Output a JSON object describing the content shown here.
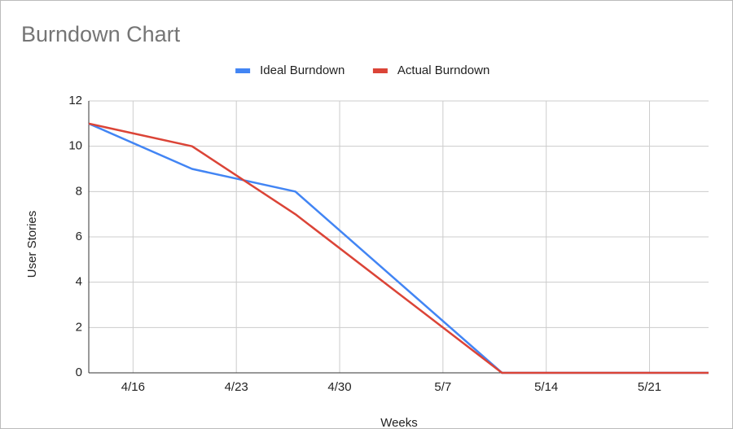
{
  "chart_data": {
    "type": "line",
    "title": "Burndown Chart",
    "x_label": "Weeks",
    "y_label": "User Stories",
    "x": [
      "4/13",
      "4/20",
      "4/27",
      "5/4",
      "5/11",
      "5/18",
      "5/25"
    ],
    "series": [
      {
        "name": "Ideal Burndown",
        "color": "#4285f4",
        "values": [
          11,
          9,
          8,
          4,
          0,
          0,
          0
        ]
      },
      {
        "name": "Actual Burndown",
        "color": "#db4437",
        "values": [
          11,
          10,
          7,
          3.5,
          0,
          0,
          0
        ]
      }
    ],
    "xlim": [
      "4/13",
      "5/25"
    ],
    "xticks": [
      "4/16",
      "4/23",
      "4/30",
      "5/7",
      "5/14",
      "5/21"
    ],
    "ylim": [
      0,
      12
    ],
    "yticks": [
      0,
      2,
      4,
      6,
      8,
      10,
      12
    ],
    "grid": true,
    "legend": "top"
  }
}
